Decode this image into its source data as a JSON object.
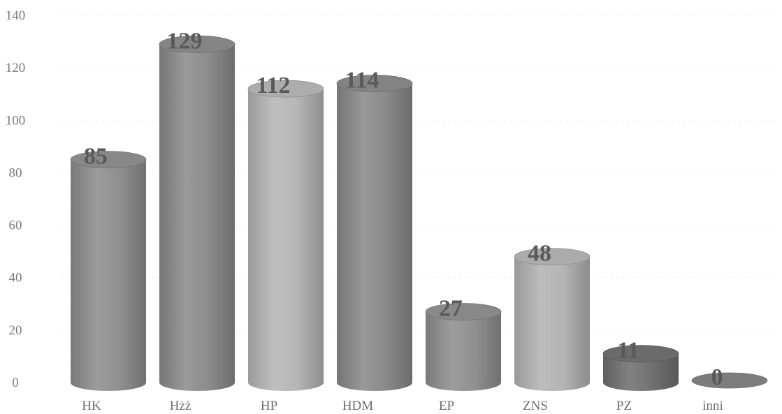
{
  "chart_data": {
    "type": "bar",
    "style": "3d-cylinder",
    "categories": [
      "HK",
      "Hżż",
      "HP",
      "HDM",
      "EP",
      "ZNS",
      "PZ",
      "inni"
    ],
    "values": [
      85,
      129,
      112,
      114,
      27,
      48,
      11,
      0
    ],
    "value_labels": [
      "85",
      "129",
      "112",
      "114",
      "27",
      "48",
      "11",
      "0"
    ],
    "y_ticks": [
      "0",
      "20",
      "40",
      "60",
      "80",
      "100",
      "120",
      "140"
    ],
    "ylim": [
      0,
      140
    ],
    "grid": true,
    "legend": "none",
    "colors": [
      "#8f8f8f",
      "#8c8c8c",
      "#b6b6b6",
      "#8a8a8a",
      "#909090",
      "#b4b4b4",
      "#717171",
      "#8a8a8a"
    ]
  }
}
